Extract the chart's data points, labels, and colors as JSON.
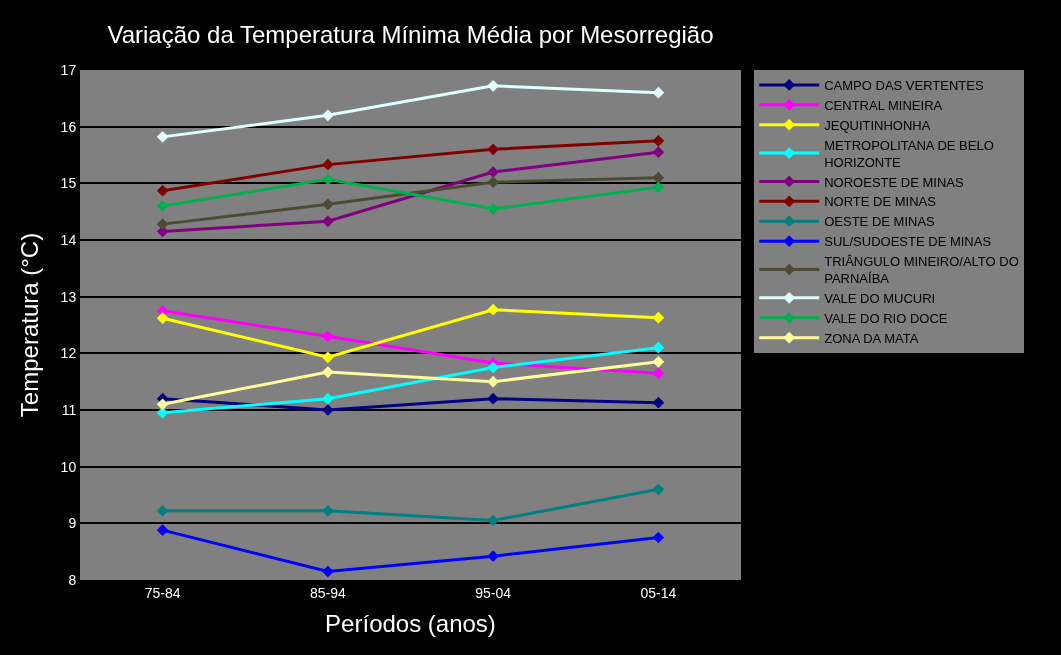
{
  "chart_data": {
    "type": "line",
    "title": "Variação da Temperatura Mínima Média por Mesorregião",
    "xlabel": "Períodos (anos)",
    "ylabel": "Temperatura (°C)",
    "categories": [
      "75-84",
      "85-94",
      "95-04",
      "05-14"
    ],
    "ylim": [
      8,
      17
    ],
    "yticks": [
      8,
      9,
      10,
      11,
      12,
      13,
      14,
      15,
      16,
      17
    ],
    "grid": "y",
    "legend": "right",
    "marker": "diamond",
    "line_style": "solid",
    "series": [
      {
        "name": "CAMPO DAS VERTENTES",
        "color": "#000080",
        "values": [
          11.2,
          11.0,
          11.2,
          11.13
        ]
      },
      {
        "name": "CENTRAL MINEIRA",
        "color": "#ff00ff",
        "values": [
          12.75,
          12.3,
          11.83,
          11.65
        ]
      },
      {
        "name": "JEQUITINHONHA",
        "color": "#ffff00",
        "values": [
          12.62,
          11.93,
          12.77,
          12.63
        ]
      },
      {
        "name": "METROPOLITANA DE BELO HORIZONTE",
        "color": "#00ffff",
        "values": [
          10.95,
          11.2,
          11.75,
          12.1
        ]
      },
      {
        "name": "NOROESTE DE MINAS",
        "color": "#800080",
        "values": [
          14.15,
          14.33,
          15.2,
          15.55
        ]
      },
      {
        "name": "NORTE DE MINAS",
        "color": "#800000",
        "values": [
          14.87,
          15.33,
          15.6,
          15.75
        ]
      },
      {
        "name": "OESTE DE MINAS",
        "color": "#008080",
        "values": [
          9.22,
          9.22,
          9.05,
          9.6
        ]
      },
      {
        "name": "SUL/SUDOESTE DE MINAS",
        "color": "#0000ff",
        "values": [
          8.88,
          8.15,
          8.42,
          8.75
        ]
      },
      {
        "name": "TRIÂNGULO MINEIRO/ALTO DO PARNAÍBA",
        "color": "#4d4a33",
        "values": [
          14.28,
          14.63,
          15.02,
          15.1
        ]
      },
      {
        "name": "VALE DO MUCURI",
        "color": "#e0ffff",
        "values": [
          15.82,
          16.2,
          16.72,
          16.6
        ]
      },
      {
        "name": "VALE DO RIO DOCE",
        "color": "#00b050",
        "values": [
          14.6,
          15.07,
          14.55,
          14.93
        ]
      },
      {
        "name": "ZONA DA MATA",
        "color": "#ffff99",
        "values": [
          11.1,
          11.67,
          11.5,
          11.85
        ]
      }
    ]
  }
}
